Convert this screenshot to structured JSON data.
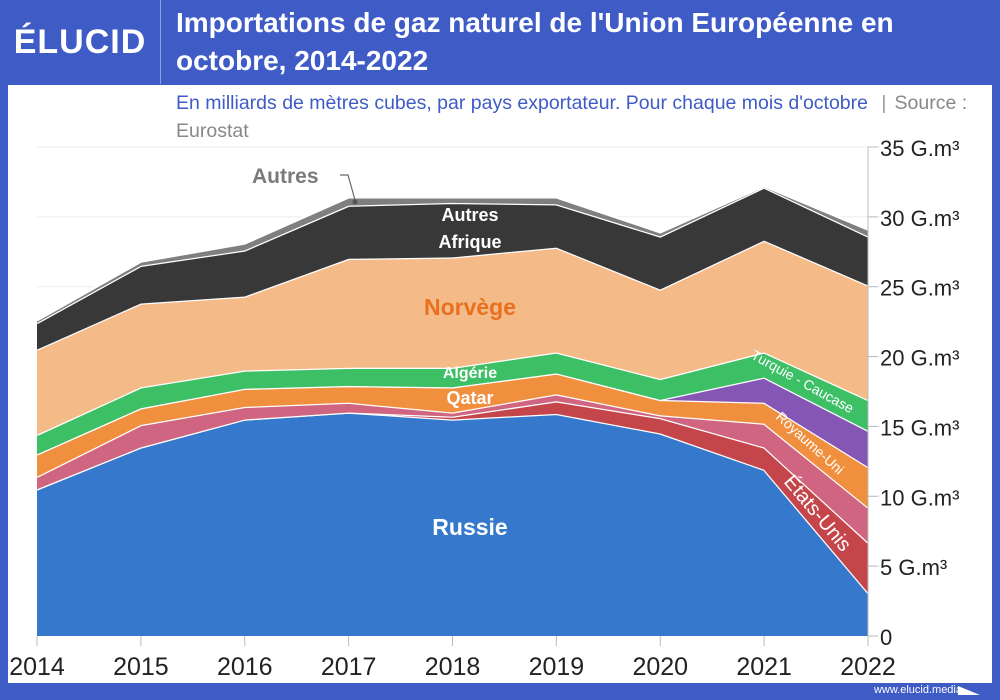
{
  "header": {
    "logo": "ÉLUCID",
    "title": "Importations de gaz naturel de l'Union Européenne en octobre, 2014-2022",
    "subtitle": "En milliards de mètres cubes, par pays exportateur. Pour chaque mois d'octobre",
    "separator": "|",
    "source": "Source : Eurostat"
  },
  "footer": {
    "url": "www.elucid.media"
  },
  "chart_data": {
    "type": "area",
    "stacked": true,
    "title": "Importations de gaz naturel de l'Union Européenne en octobre, 2014-2022",
    "xlabel": "",
    "ylabel": "",
    "categories": [
      "2014",
      "2015",
      "2016",
      "2017",
      "2018",
      "2019",
      "2020",
      "2021",
      "2022"
    ],
    "ylim": [
      0,
      35
    ],
    "yticks": [
      {
        "value": 0,
        "label": "0"
      },
      {
        "value": 5,
        "label": "5 G.m³"
      },
      {
        "value": 10,
        "label": "10 G.m³"
      },
      {
        "value": 15,
        "label": "15 G.m³"
      },
      {
        "value": 20,
        "label": "20 G.m³"
      },
      {
        "value": 25,
        "label": "25 G.m³"
      },
      {
        "value": 30,
        "label": "30 G.m³"
      },
      {
        "value": 35,
        "label": "35 G.m³"
      }
    ],
    "series": [
      {
        "name": "Russie",
        "color": "#3679cc",
        "values": [
          10.5,
          13.5,
          15.5,
          16.0,
          15.5,
          15.9,
          14.5,
          11.9,
          3.1
        ]
      },
      {
        "name": "États-Unis",
        "color": "#c4464b",
        "values": [
          0,
          0,
          0,
          0,
          0.2,
          0.9,
          1.1,
          1.6,
          3.6
        ]
      },
      {
        "name": "Royaume-Uni",
        "color": "#cf6580",
        "values": [
          0.9,
          1.6,
          0.9,
          0.7,
          0.3,
          0.5,
          0.2,
          1.7,
          2.5
        ]
      },
      {
        "name": "Qatar",
        "color": "#f0903f",
        "values": [
          1.6,
          1.2,
          1.3,
          1.2,
          1.8,
          1.5,
          1.1,
          1.5,
          2.9
        ]
      },
      {
        "name": "Turquie - Caucase",
        "color": "#8656b4",
        "values": [
          0,
          0,
          0,
          0,
          0,
          0,
          0,
          1.8,
          2.6
        ]
      },
      {
        "name": "Algérie",
        "color": "#3dbf66",
        "values": [
          1.4,
          1.5,
          1.3,
          1.3,
          1.4,
          1.5,
          1.5,
          1.8,
          2.2
        ]
      },
      {
        "name": "Norvège",
        "color": "#f4bb88",
        "values": [
          6.1,
          6.0,
          5.3,
          7.8,
          7.9,
          7.5,
          6.4,
          8.0,
          8.2
        ]
      },
      {
        "name": "Autres Afrique",
        "color": "#383838",
        "values": [
          1.9,
          2.7,
          3.3,
          3.8,
          3.9,
          3.1,
          3.8,
          3.8,
          3.5
        ]
      },
      {
        "name": "Autres",
        "color": "#7f7f7f",
        "values": [
          0.2,
          0.3,
          0.5,
          0.6,
          0.4,
          0.5,
          0.3,
          0.1,
          0.5
        ]
      }
    ],
    "labels": {
      "russie": "Russie",
      "etats_unis": "États-Unis",
      "royaume_uni": "Royaume-Uni",
      "qatar": "Qatar",
      "turquie": "Turquie - Caucase",
      "algerie": "Algérie",
      "norvege": "Norvège",
      "autres_afrique_1": "Autres",
      "autres_afrique_2": "Afrique",
      "autres": "Autres"
    },
    "legend": "inline"
  }
}
